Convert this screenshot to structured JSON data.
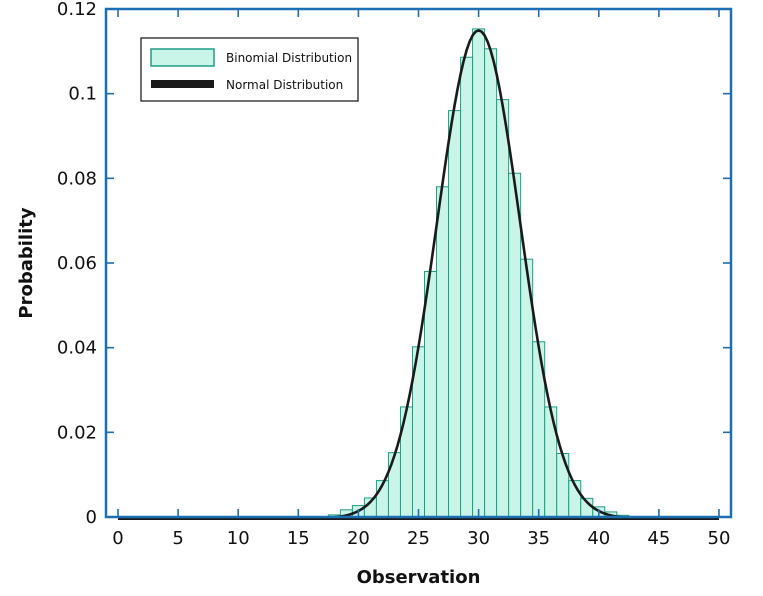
{
  "chart_data": {
    "type": "bar",
    "title": "",
    "xlabel": "Observation",
    "ylabel": "Probability",
    "xlim": [
      -1,
      51
    ],
    "ylim": [
      0,
      0.12
    ],
    "xticks": [
      0,
      5,
      10,
      15,
      20,
      25,
      30,
      35,
      40,
      45,
      50
    ],
    "yticks": [
      0,
      0.02,
      0.04,
      0.06,
      0.08,
      0.1,
      0.12
    ],
    "ytick_labels": [
      "0",
      "0.02",
      "0.04",
      "0.06",
      "0.08",
      "0.1",
      "0.12"
    ],
    "grid": false,
    "legend_position": "top-left",
    "series": [
      {
        "name": "Binomial Distribution",
        "kind": "bar",
        "color": "#c9f5e9",
        "edge_color": "#1f9e86",
        "x": [
          0,
          1,
          2,
          3,
          4,
          5,
          6,
          7,
          8,
          9,
          10,
          11,
          12,
          13,
          14,
          15,
          16,
          17,
          18,
          19,
          20,
          21,
          22,
          23,
          24,
          25,
          26,
          27,
          28,
          29,
          30,
          31,
          32,
          33,
          34,
          35,
          36,
          37,
          38,
          39,
          40,
          41,
          42,
          43,
          44,
          45,
          46,
          47,
          48,
          49,
          50
        ],
        "values": [
          0,
          0,
          0,
          0,
          0,
          0,
          0,
          0,
          0,
          0,
          0,
          0,
          0,
          0,
          0,
          0,
          0,
          0,
          0.0005,
          0.0017,
          0.0027,
          0.0045,
          0.0086,
          0.0152,
          0.026,
          0.0402,
          0.058,
          0.078,
          0.096,
          0.1086,
          0.1153,
          0.1106,
          0.0986,
          0.0812,
          0.0609,
          0.0414,
          0.026,
          0.015,
          0.0086,
          0.0044,
          0.0024,
          0.0012,
          0.0004,
          0,
          0,
          0,
          0,
          0,
          0,
          0,
          0
        ]
      },
      {
        "name": "Normal Distribution",
        "kind": "line",
        "color": "#1a1a1a",
        "mean": 30,
        "sd": 3.46,
        "x": [
          0,
          10,
          15,
          16,
          17,
          18,
          19,
          20,
          21,
          22,
          23,
          24,
          25,
          26,
          27,
          28,
          29,
          30,
          31,
          32,
          33,
          34,
          35,
          36,
          37,
          38,
          39,
          40,
          41,
          42,
          43,
          44,
          45,
          50
        ],
        "values": [
          0,
          0,
          0,
          0,
          0,
          0.0007,
          0.0014,
          0.0022,
          0.0042,
          0.0079,
          0.0144,
          0.0257,
          0.0407,
          0.0582,
          0.0774,
          0.0941,
          0.1083,
          0.1153,
          0.1083,
          0.0941,
          0.0774,
          0.0582,
          0.0407,
          0.0257,
          0.0144,
          0.0079,
          0.0042,
          0.0022,
          0.001,
          0.0004,
          0,
          0,
          0,
          0
        ]
      }
    ]
  }
}
